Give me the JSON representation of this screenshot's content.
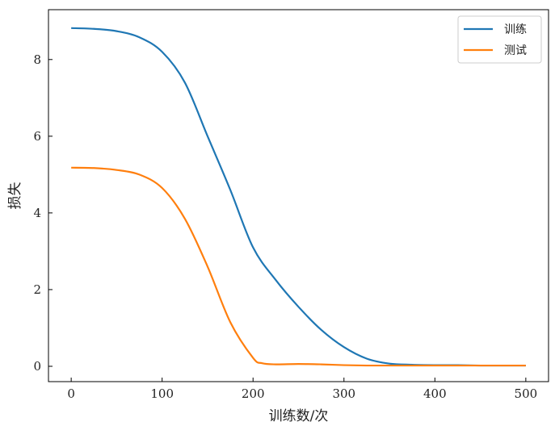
{
  "chart_data": {
    "type": "line",
    "title": "",
    "xlabel": "训练数/次",
    "ylabel": "损失",
    "xlim": [
      -25,
      525
    ],
    "ylim": [
      -0.4,
      9.3
    ],
    "xticks": [
      0,
      100,
      200,
      300,
      400,
      500
    ],
    "yticks": [
      0,
      2,
      4,
      6,
      8
    ],
    "grid": false,
    "legend_position": "top-right",
    "series": [
      {
        "name": "训练",
        "color": "#1f77b4",
        "x": [
          0,
          25,
          50,
          75,
          100,
          125,
          150,
          175,
          200,
          225,
          250,
          275,
          300,
          325,
          350,
          375,
          400,
          425,
          450,
          475,
          500
        ],
        "y": [
          8.82,
          8.8,
          8.74,
          8.58,
          8.2,
          7.4,
          6.0,
          4.6,
          3.1,
          2.25,
          1.55,
          0.95,
          0.5,
          0.2,
          0.07,
          0.04,
          0.03,
          0.03,
          0.02,
          0.02,
          0.02
        ]
      },
      {
        "name": "测试",
        "color": "#ff7f0e",
        "x": [
          0,
          25,
          50,
          75,
          100,
          125,
          150,
          175,
          200,
          210,
          225,
          250,
          275,
          300,
          325,
          350,
          375,
          400,
          425,
          450,
          475,
          500
        ],
        "y": [
          5.18,
          5.17,
          5.12,
          5.0,
          4.65,
          3.85,
          2.6,
          1.15,
          0.22,
          0.08,
          0.05,
          0.06,
          0.05,
          0.03,
          0.02,
          0.02,
          0.02,
          0.02,
          0.02,
          0.02,
          0.02,
          0.02
        ]
      }
    ]
  }
}
